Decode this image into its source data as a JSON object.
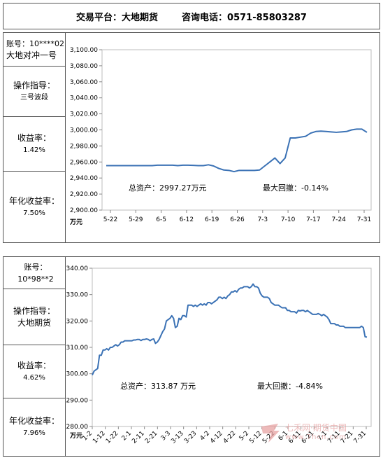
{
  "header": {
    "platform": "交易平台：大地期货",
    "phone": "咨询电话：0571-85803287"
  },
  "panels": [
    {
      "account": "账号：10****02",
      "account_sub": "大地对冲一号",
      "guide_label": "操作指导：",
      "guide_value": "三号波段",
      "return_label": "收益率：",
      "return_value": "1.42%",
      "annual_label": "年化收益率：",
      "annual_value": "7.50%",
      "total_assets": "总资产：2997.27万元",
      "max_drawdown": "最大回撤：-0.14%"
    },
    {
      "account": "账号：10*98**2",
      "account_sub": "",
      "guide_label": "操作指导：",
      "guide_value": "大地期货",
      "return_label": "收益率：",
      "return_value": "4.62%",
      "annual_label": "年化收益率：",
      "annual_value": "7.96%",
      "total_assets": "总资产：313.87 万元",
      "max_drawdown": "最大回撤：-4.84%"
    }
  ],
  "watermark": {
    "line1": "七禾网·期货中国",
    "line2": "www.7hcn.com"
  },
  "chart_data": [
    {
      "type": "line",
      "unit_label": "万元",
      "ylim": [
        2900,
        3100
      ],
      "yticks": [
        2900,
        2920,
        2940,
        2960,
        2980,
        3000,
        3020,
        3040,
        3060,
        3080,
        3100
      ],
      "ytick_labels": [
        "2,900.00",
        "2,920.00",
        "2,940.00",
        "2,960.00",
        "2,980.00",
        "3,000.00",
        "3,020.00",
        "3,040.00",
        "3,060.00",
        "3,080.00",
        "3,100.00"
      ],
      "xticks": [
        "5-22",
        "5-29",
        "6-5",
        "6-12",
        "6-19",
        "6-26",
        "7-3",
        "7-10",
        "7-17",
        "7-24",
        "7-31"
      ],
      "x": [
        "5-22",
        "5-23",
        "5-24",
        "5-25",
        "5-26",
        "5-29",
        "5-30",
        "5-31",
        "6-1",
        "6-2",
        "6-5",
        "6-6",
        "6-7",
        "6-8",
        "6-9",
        "6-12",
        "6-13",
        "6-14",
        "6-15",
        "6-16",
        "6-19",
        "6-20",
        "6-21",
        "6-22",
        "6-23",
        "6-26",
        "6-27",
        "6-28",
        "6-29",
        "6-30",
        "7-3",
        "7-4",
        "7-5",
        "7-6",
        "7-7",
        "7-10",
        "7-11",
        "7-12",
        "7-13",
        "7-14",
        "7-17",
        "7-18",
        "7-19",
        "7-20",
        "7-21",
        "7-24",
        "7-25",
        "7-26",
        "7-27",
        "7-28",
        "7-31",
        "8-1"
      ],
      "values": [
        2955.5,
        2955.5,
        2955.5,
        2955.5,
        2955.5,
        2955.5,
        2955.5,
        2955.5,
        2955.5,
        2955.5,
        2956,
        2956,
        2956,
        2956,
        2955.5,
        2956,
        2956,
        2955.8,
        2955.5,
        2955.5,
        2956.5,
        2955,
        2952,
        2950,
        2949.5,
        2948,
        2949.5,
        2949.5,
        2949.5,
        2949.5,
        2950,
        2955,
        2960,
        2965,
        2958,
        2965,
        2990,
        2990,
        2991,
        2992,
        2996,
        2998,
        2998.5,
        2998,
        2997.5,
        2997,
        2997.5,
        2998,
        3000,
        3001,
        3001,
        2997
      ]
    },
    {
      "type": "line",
      "unit_label": "万元",
      "ylim": [
        280,
        340
      ],
      "yticks": [
        280,
        290,
        300,
        310,
        320,
        330,
        340
      ],
      "ytick_labels": [
        "280.00",
        "290.00",
        "300.00",
        "310.00",
        "320.00",
        "330.00",
        "340.00"
      ],
      "xticks": [
        "1-2",
        "1-12",
        "1-22",
        "2-1",
        "2-11",
        "2-21",
        "3-3",
        "3-13",
        "3-23",
        "4-2",
        "4-12",
        "4-22",
        "5-2",
        "5-12",
        "5-22",
        "6-1",
        "6-11",
        "6-21",
        "7-1",
        "7-11",
        "7-21",
        "7-31"
      ],
      "values": [
        299.5,
        301,
        301.5,
        302,
        307,
        307,
        309,
        309,
        309.5,
        309,
        310,
        310,
        310.5,
        311,
        310.5,
        311,
        312,
        312,
        312.5,
        312.5,
        312.5,
        312.5,
        312.5,
        312.8,
        312.8,
        313,
        313,
        312.6,
        313,
        313,
        313.2,
        313,
        312.5,
        313,
        313.2,
        311.5,
        312,
        313,
        314.5,
        316,
        317,
        320,
        320.5,
        321,
        322,
        321,
        317.5,
        318,
        321,
        320.5,
        322,
        322,
        321.5,
        326,
        326,
        326,
        325.5,
        326,
        325.5,
        326,
        326.5,
        326,
        326.5,
        326,
        327,
        327,
        326.5,
        327,
        327.5,
        328,
        329,
        329,
        328.5,
        329,
        328.5,
        329.5,
        330,
        331,
        331,
        331.5,
        331,
        332,
        332.5,
        332.5,
        333,
        333,
        333,
        332.5,
        333,
        334,
        333,
        333,
        332.5,
        330.5,
        329.5,
        329,
        329,
        329,
        328.5,
        327,
        326.5,
        326,
        326,
        326,
        325.5,
        325,
        325,
        325,
        324,
        324,
        323.5,
        323.5,
        323.5,
        323,
        324,
        323.8,
        324,
        324,
        323.5,
        324,
        323.5,
        323,
        322.5,
        322.5,
        322.5,
        322.8,
        322.5,
        322,
        322.5,
        322,
        321.5,
        320.5,
        319,
        319,
        319,
        318.5,
        318.5,
        318,
        318,
        318,
        317.5,
        317.5,
        317.5,
        317.5,
        317.5,
        317.5,
        317.5,
        317.5,
        317.5,
        318,
        317.5,
        314,
        313.9
      ]
    }
  ]
}
